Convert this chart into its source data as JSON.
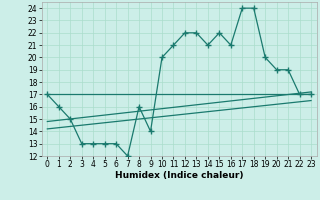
{
  "xlabel": "Humidex (Indice chaleur)",
  "bg_color": "#cceee8",
  "grid_color": "#aaddcc",
  "line_color": "#1a7a6e",
  "xlim": [
    -0.5,
    23.5
  ],
  "ylim": [
    12,
    24.5
  ],
  "yticks": [
    12,
    13,
    14,
    15,
    16,
    17,
    18,
    19,
    20,
    21,
    22,
    23,
    24
  ],
  "xticks": [
    0,
    1,
    2,
    3,
    4,
    5,
    6,
    7,
    8,
    9,
    10,
    11,
    12,
    13,
    14,
    15,
    16,
    17,
    18,
    19,
    20,
    21,
    22,
    23
  ],
  "main_x": [
    0,
    1,
    2,
    3,
    4,
    5,
    6,
    7,
    8,
    9,
    10,
    11,
    12,
    13,
    14,
    15,
    16,
    17,
    18,
    19,
    20,
    21,
    22,
    23
  ],
  "main_y": [
    17,
    16,
    15,
    13,
    13,
    13,
    13,
    12,
    16,
    14,
    20,
    21,
    22,
    22,
    21,
    22,
    21,
    24,
    24,
    20,
    19,
    19,
    17,
    17
  ],
  "line2_x": [
    0,
    23
  ],
  "line2_y": [
    17.0,
    17.0
  ],
  "line3_x": [
    0,
    23
  ],
  "line3_y": [
    14.8,
    17.2
  ],
  "line4_x": [
    0,
    23
  ],
  "line4_y": [
    14.2,
    16.5
  ],
  "marker_size": 2.5,
  "line_width": 0.9,
  "tick_fontsize": 5.5,
  "xlabel_fontsize": 6.5
}
